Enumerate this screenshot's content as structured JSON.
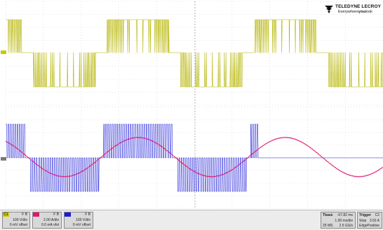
{
  "logo": {
    "brand": "TELEDYNE LECROY",
    "tagline_prefix": "Everywhere",
    "tagline_bold": "you",
    "tagline_suffix": "look"
  },
  "channels": [
    {
      "tag": "C1",
      "kind": "F B",
      "scale": "100 V/div",
      "offset": "0 mV offset",
      "color": "#c9c800"
    },
    {
      "tag": "",
      "kind": "F B",
      "scale": "2.00 A/div",
      "offset": "0.0 mA ofst",
      "color": "#e0186e"
    },
    {
      "tag": "",
      "kind": "F B",
      "scale": "100 V/div",
      "offset": "0 mV offset",
      "color": "#1a1ad8"
    }
  ],
  "timebase": {
    "label": "Tbase",
    "delay": "-67.82 ms",
    "per_div": "1.00 ms/div",
    "samples": "25 MS",
    "rate": "2.5 GS/s"
  },
  "trigger": {
    "label": "Trigger",
    "channel": "C2",
    "mode": "Stop",
    "level": "3.52 A",
    "type": "Edge",
    "slope": "Positive"
  },
  "colors": {
    "ch1": "#b5b400",
    "ch2": "#e0186e",
    "ch3": "#1a1ad8",
    "grid": "#c9c9c9"
  },
  "waveforms": {
    "ch1": {
      "period_divs": 3.9,
      "levels": 2,
      "carrier_divs": 0.04
    },
    "ch2": {
      "period_divs": 3.9,
      "amplitude_divs": 1.55,
      "ripple": 0.25
    },
    "ch3": {
      "period_divs": 3.9,
      "end_divs": 6.7,
      "carrier_divs": 0.06
    }
  }
}
